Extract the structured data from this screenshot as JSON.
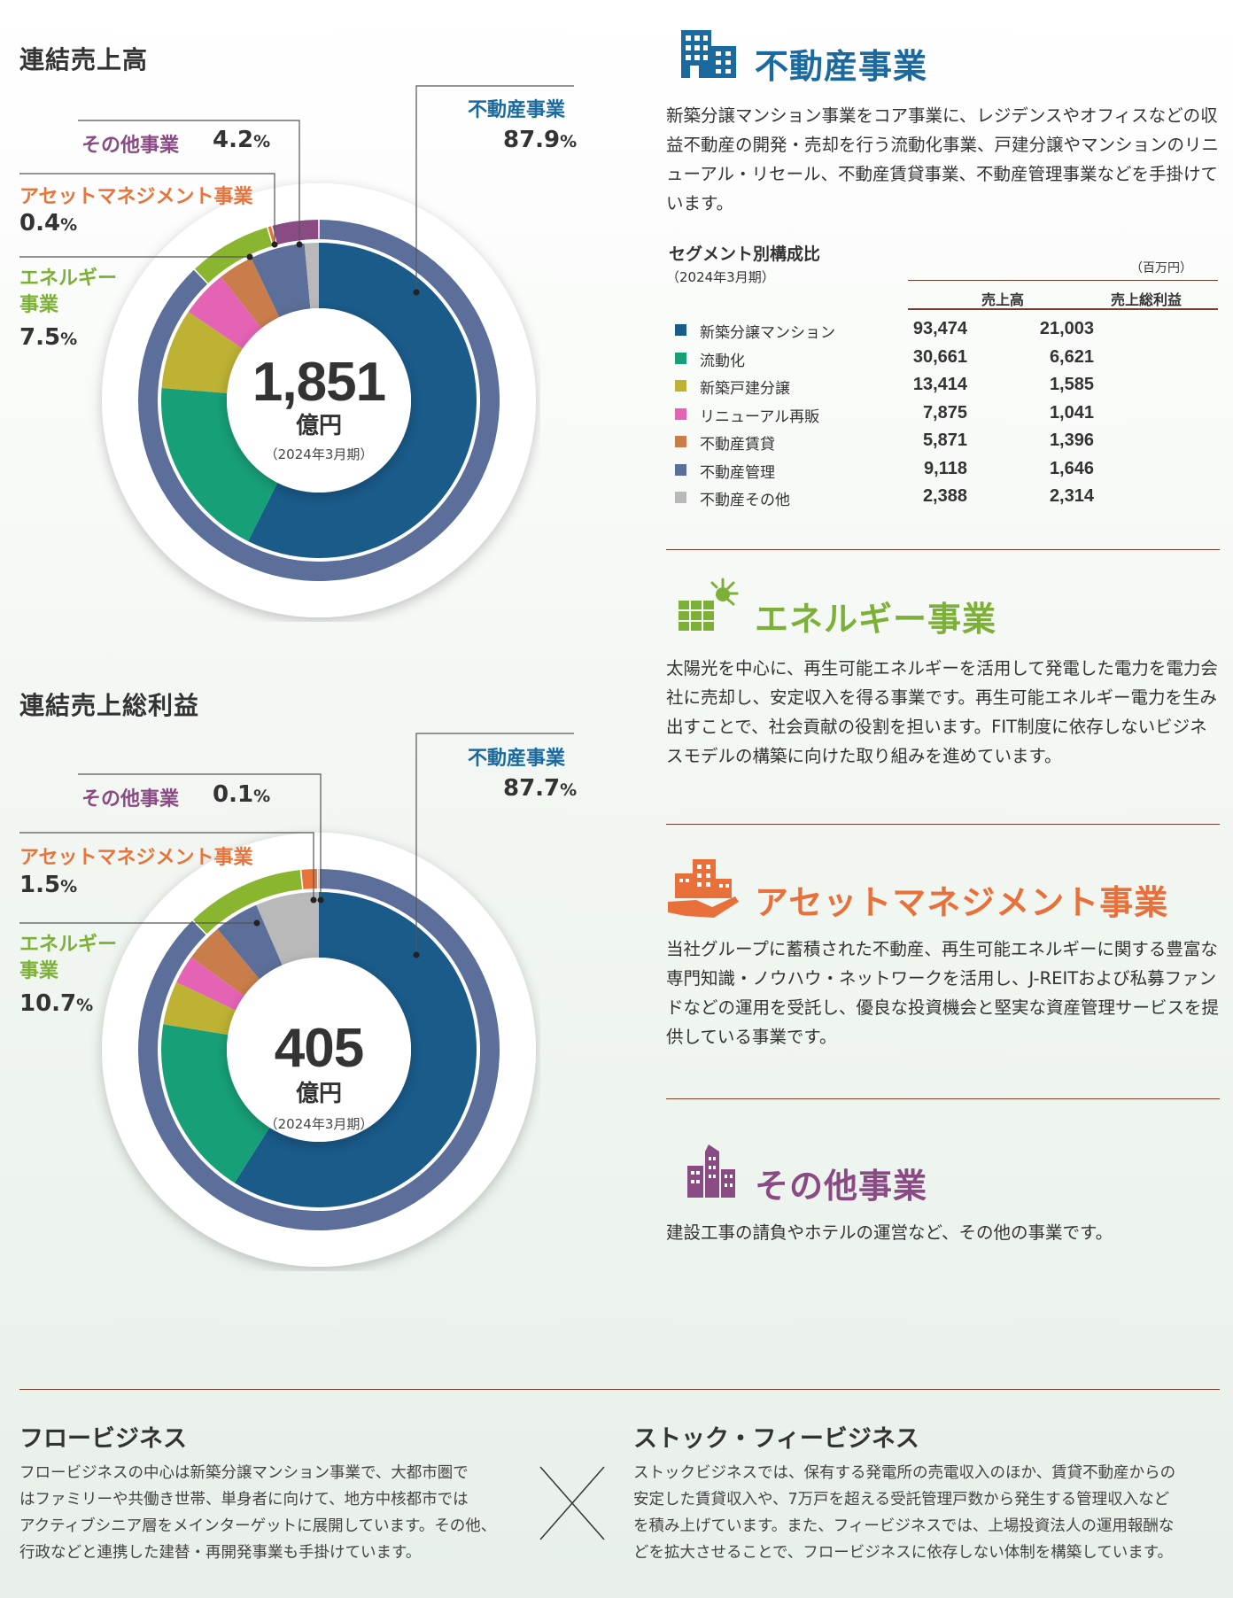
{
  "chart_data": [
    {
      "type": "pie",
      "title": "連結売上高",
      "center": {
        "value": "1,851",
        "unit": "億円",
        "period": "（2024年3月期）"
      },
      "outer_ring": [
        {
          "name": "不動産事業",
          "value": 87.9,
          "pct_label": "87.9",
          "color": "#5b6f9a"
        },
        {
          "name": "エネルギー事業",
          "value": 7.5,
          "pct_label": "7.5",
          "color": "#8ab52f"
        },
        {
          "name": "アセットマネジメント事業",
          "value": 0.4,
          "pct_label": "0.4",
          "color": "#e8743b"
        },
        {
          "name": "その他事業",
          "value": 4.2,
          "pct_label": "4.2",
          "color": "#8a4a84"
        }
      ],
      "inner_ring": [
        {
          "name": "新築分譲マンション",
          "value": 93474,
          "color": "#1a5b8a"
        },
        {
          "name": "流動化",
          "value": 30661,
          "color": "#17a077"
        },
        {
          "name": "新築戸建分譲",
          "value": 13414,
          "color": "#bdb234"
        },
        {
          "name": "リニューアル再販",
          "value": 7875,
          "color": "#e563b5"
        },
        {
          "name": "不動産賃貸",
          "value": 5871,
          "color": "#c97d4a"
        },
        {
          "name": "不動産管理",
          "value": 9118,
          "color": "#5b6f9a"
        },
        {
          "name": "不動産その他",
          "value": 2388,
          "color": "#b9b9b9"
        }
      ]
    },
    {
      "type": "pie",
      "title": "連結売上総利益",
      "center": {
        "value": "405",
        "unit": "億円",
        "period": "（2024年3月期）"
      },
      "outer_ring": [
        {
          "name": "不動産事業",
          "value": 87.7,
          "pct_label": "87.7",
          "color": "#5b6f9a"
        },
        {
          "name": "エネルギー事業",
          "value": 10.7,
          "pct_label": "10.7",
          "color": "#8ab52f"
        },
        {
          "name": "アセットマネジメント事業",
          "value": 1.5,
          "pct_label": "1.5",
          "color": "#e8743b"
        },
        {
          "name": "その他事業",
          "value": 0.1,
          "pct_label": "0.1",
          "color": "#8a4a84"
        }
      ],
      "inner_ring": [
        {
          "name": "新築分譲マンション",
          "value": 21003,
          "color": "#1a5b8a"
        },
        {
          "name": "流動化",
          "value": 6621,
          "color": "#17a077"
        },
        {
          "name": "新築戸建分譲",
          "value": 1585,
          "color": "#bdb234"
        },
        {
          "name": "リニューアル再販",
          "value": 1041,
          "color": "#e563b5"
        },
        {
          "name": "不動産賃貸",
          "value": 1396,
          "color": "#c97d4a"
        },
        {
          "name": "不動産管理",
          "value": 1646,
          "color": "#5b6f9a"
        },
        {
          "name": "不動産その他",
          "value": 2314,
          "color": "#b9b9b9"
        }
      ]
    }
  ],
  "labels": {
    "realestate": "不動産事業",
    "other": "その他事業",
    "asset_mgmt": "アセットマネジメント事業",
    "energy_l1": "エネルギー",
    "energy_l2": "事業",
    "pct_sign": "%"
  },
  "sections": {
    "realestate": {
      "title": "不動産事業",
      "color": "#1a6aa0",
      "text": "新築分譲マンション事業をコア事業に、レジデンスやオフィスなどの収益不動産の開発・売却を行う流動化事業、戸建分譲やマンションのリニューアル・リセール、不動産賃貸事業、不動産管理事業などを手掛けています。"
    },
    "energy": {
      "title": "エネルギー事業",
      "color": "#7db037",
      "text": "太陽光を中心に、再生可能エネルギーを活用して発電した電力を電力会社に売却し、安定収入を得る事業です。再生可能エネルギー電力を生み出すことで、社会貢献の役割を担います。FIT制度に依存しないビジネスモデルの構築に向けた取り組みを進めています。"
    },
    "asset": {
      "title": "アセットマネジメント事業",
      "color": "#e8703a",
      "text": "当社グループに蓄積された不動産、再生可能エネルギーに関する豊富な専門知識・ノウハウ・ネットワークを活用し、J-REITおよび私募ファンドなどの運用を受託し、優良な投資機会と堅実な資産管理サービスを提供している事業です。"
    },
    "other": {
      "title": "その他事業",
      "color": "#8a4a84",
      "text": "建設工事の請負やホテルの運営など、その他の事業です。"
    }
  },
  "segment_table": {
    "title": "セグメント別構成比",
    "period": "（2024年3月期）",
    "unit": "（百万円）",
    "col_sales": "売上高",
    "col_gross": "売上総利益",
    "rows": [
      {
        "label": "新築分譲マンション",
        "sales": "93,474",
        "gross": "21,003",
        "color": "#1a5b8a"
      },
      {
        "label": "流動化",
        "sales": "30,661",
        "gross": "6,621",
        "color": "#17a077"
      },
      {
        "label": "新築戸建分譲",
        "sales": "13,414",
        "gross": "1,585",
        "color": "#bdb234"
      },
      {
        "label": "リニューアル再販",
        "sales": "7,875",
        "gross": "1,041",
        "color": "#e563b5"
      },
      {
        "label": "不動産賃貸",
        "sales": "5,871",
        "gross": "1,396",
        "color": "#c97d4a"
      },
      {
        "label": "不動産管理",
        "sales": "9,118",
        "gross": "1,646",
        "color": "#5b6f9a"
      },
      {
        "label": "不動産その他",
        "sales": "2,388",
        "gross": "2,314",
        "color": "#b9b9b9"
      }
    ]
  },
  "footer": {
    "flow_title": "フロービジネス",
    "flow_text_1": "フロービジネスの中心は新築分譲マンション事業で、大都市圏で",
    "flow_text_2": "はファミリーや共働き世帯、単身者に向けて、地方中核都市では",
    "flow_text_3": "アクティブシニア層をメインターゲットに展開しています。その他、",
    "flow_text_4": "行政などと連携した建替・再開発事業も手掛けています。",
    "stock_title": "ストック・フィービジネス",
    "stock_text_1": "ストックビジネスでは、保有する発電所の売電収入のほか、賃貸不動産からの",
    "stock_text_2": "安定した賃貸収入や、7万戸を超える受託管理戸数から発生する管理収入など",
    "stock_text_3": "を積み上げています。また、フィービジネスでは、上場投資法人の運用報酬な",
    "stock_text_4": "どを拡大させることで、フロービジネスに依存しない体制を構築しています。"
  }
}
